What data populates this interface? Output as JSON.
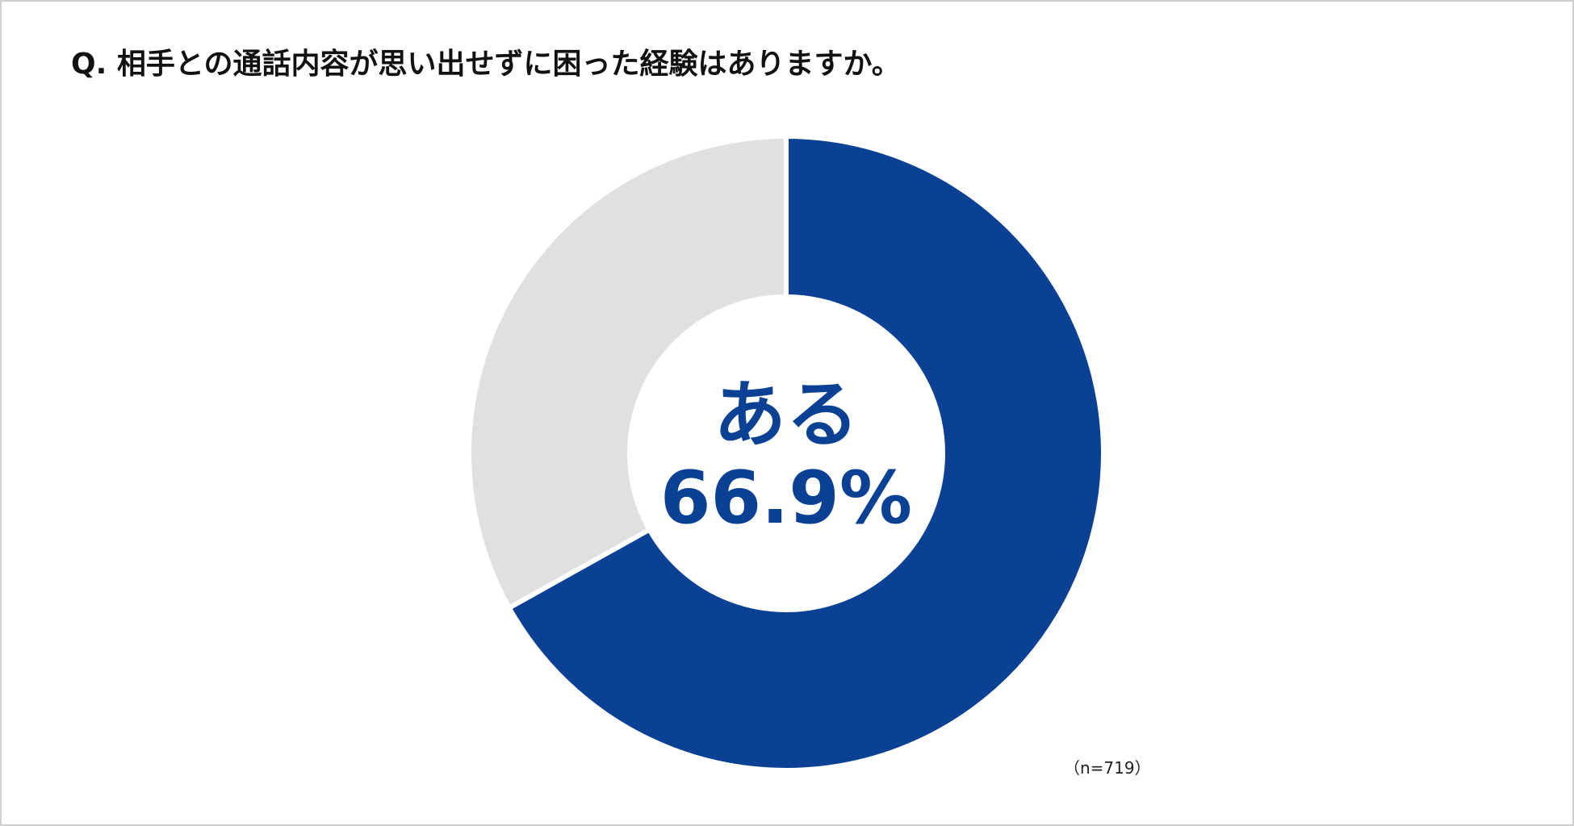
{
  "chart_data": {
    "type": "pie",
    "title": "Q. 相手との通話内容が思い出せずに困った経験はありますか。",
    "slices": [
      {
        "label": "ある",
        "value": 66.9,
        "display": "66.9%",
        "color": "#0b4194"
      },
      {
        "label": "",
        "value": 33.1,
        "color": "#e0e0e0"
      }
    ],
    "center_label": "ある",
    "center_value": "66.9%",
    "sample_note": "（n=719）"
  }
}
